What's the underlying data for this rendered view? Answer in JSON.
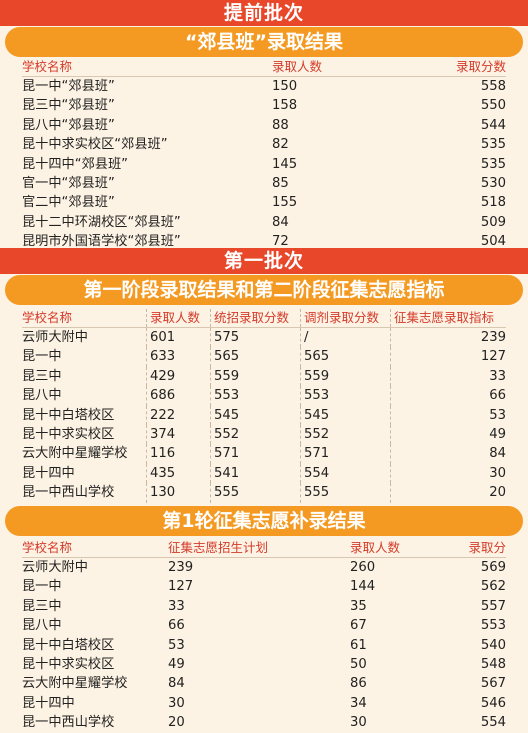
{
  "section1": {
    "banner": "提前批次",
    "subtitle": "“郊县班”录取结果",
    "headers": [
      "学校名称",
      "录取人数",
      "录取分数"
    ],
    "rows": [
      [
        "昆一中“郊县班”",
        "150",
        "558"
      ],
      [
        "昆三中“郊县班”",
        "158",
        "550"
      ],
      [
        "昆八中“郊县班”",
        "88",
        "544"
      ],
      [
        "昆十中求实校区“郊县班”",
        "82",
        "535"
      ],
      [
        "昆十四中“郊县班”",
        "145",
        "535"
      ],
      [
        "官一中“郊县班”",
        "85",
        "530"
      ],
      [
        "官二中“郊县班”",
        "155",
        "518"
      ],
      [
        "昆十二中环湖校区“郊县班”",
        "84",
        "509"
      ],
      [
        "昆明市外国语学校“郊县班”",
        "72",
        "504"
      ]
    ]
  },
  "section2": {
    "banner": "第一批次",
    "subtitle": "第一阶段录取结果和第二阶段征集志愿指标",
    "headers": [
      "学校名称",
      "录取人数",
      "统招录取分数",
      "调剂录取分数",
      "征集志愿录取指标"
    ],
    "rows": [
      [
        "云师大附中",
        "601",
        "575",
        "/",
        "239"
      ],
      [
        "昆一中",
        "633",
        "565",
        "565",
        "127"
      ],
      [
        "昆三中",
        "429",
        "559",
        "559",
        "33"
      ],
      [
        "昆八中",
        "686",
        "553",
        "553",
        "66"
      ],
      [
        "昆十中白塔校区",
        "222",
        "545",
        "545",
        "53"
      ],
      [
        "昆十中求实校区",
        "374",
        "552",
        "552",
        "49"
      ],
      [
        "云大附中星耀学校",
        "116",
        "571",
        "571",
        "84"
      ],
      [
        "昆十四中",
        "435",
        "541",
        "554",
        "30"
      ],
      [
        "昆一中西山学校",
        "130",
        "555",
        "555",
        "20"
      ]
    ]
  },
  "section3": {
    "subtitle": "第1轮征集志愿补录结果",
    "headers": [
      "学校名称",
      "征集志愿招生计划",
      "录取人数",
      "录取分"
    ],
    "rows": [
      [
        "云师大附中",
        "239",
        "260",
        "569"
      ],
      [
        "昆一中",
        "127",
        "144",
        "562"
      ],
      [
        "昆三中",
        "33",
        "35",
        "557"
      ],
      [
        "昆八中",
        "66",
        "67",
        "553"
      ],
      [
        "昆十中白塔校区",
        "53",
        "61",
        "540"
      ],
      [
        "昆十中求实校区",
        "49",
        "50",
        "548"
      ],
      [
        "云大附中星耀学校",
        "84",
        "86",
        "567"
      ],
      [
        "昆十四中",
        "30",
        "34",
        "546"
      ],
      [
        "昆一中西山学校",
        "20",
        "30",
        "554"
      ]
    ]
  },
  "colors": {
    "red": "#e8472a",
    "orange": "#f49a22",
    "header_text": "#d43b2a",
    "background": "#fdf3e4"
  }
}
